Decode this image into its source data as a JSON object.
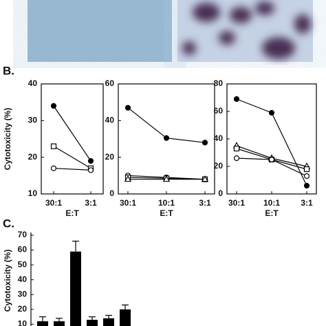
{
  "panel_labels": [
    "B.",
    "C."
  ],
  "chart_data": [
    {
      "type": "line",
      "y_label": "Cytotoxicity (%)",
      "x_label": "E:T",
      "categories": [
        "30:1",
        "3:1"
      ],
      "ylim": [
        10,
        40
      ],
      "yticks": [
        10,
        20,
        30,
        40
      ],
      "series": [
        {
          "marker": "filled-circle",
          "color": "#000000",
          "values": [
            34,
            19
          ]
        },
        {
          "marker": "square",
          "color": "#000000",
          "values": [
            23,
            17
          ]
        },
        {
          "marker": "circle",
          "color": "#000000",
          "values": [
            17,
            16.5
          ]
        }
      ]
    },
    {
      "type": "line",
      "x_label": "E:T",
      "categories": [
        "30:1",
        "10:1",
        "3:1"
      ],
      "ylim": [
        0,
        60
      ],
      "yticks": [
        0,
        20,
        40,
        60
      ],
      "series": [
        {
          "marker": "filled-circle",
          "color": "#000000",
          "values": [
            47,
            30.5,
            28
          ]
        },
        {
          "marker": "circle",
          "color": "#000000",
          "values": [
            10,
            9,
            8
          ]
        },
        {
          "marker": "square",
          "color": "#000000",
          "values": [
            9,
            8.5,
            8
          ]
        },
        {
          "marker": "triangle",
          "color": "#000000",
          "values": [
            8,
            8,
            8
          ]
        }
      ]
    },
    {
      "type": "line",
      "x_label": "E:T",
      "categories": [
        "30:1",
        "10:1",
        "3:1"
      ],
      "ylim": [
        0,
        80
      ],
      "yticks": [
        0,
        20,
        40,
        60,
        80
      ],
      "series": [
        {
          "marker": "filled-circle",
          "color": "#000000",
          "values": [
            69,
            59,
            6
          ]
        },
        {
          "marker": "triangle",
          "color": "#000000",
          "values": [
            35,
            26,
            20
          ]
        },
        {
          "marker": "square",
          "color": "#000000",
          "values": [
            33,
            25,
            18
          ]
        },
        {
          "marker": "circle",
          "color": "#000000",
          "values": [
            26,
            25,
            13
          ]
        }
      ]
    },
    {
      "type": "bar",
      "y_label": "Cytotoxicity (%)",
      "color": "#000000",
      "categories": [
        null,
        null,
        null,
        null,
        null,
        null
      ],
      "values": [
        12,
        12,
        59,
        13,
        14,
        20
      ],
      "errors": [
        3,
        2,
        7,
        2,
        2,
        3
      ],
      "ylim": [
        0,
        70
      ],
      "yticks": [
        10,
        20,
        30,
        40,
        50,
        60,
        70
      ]
    }
  ]
}
